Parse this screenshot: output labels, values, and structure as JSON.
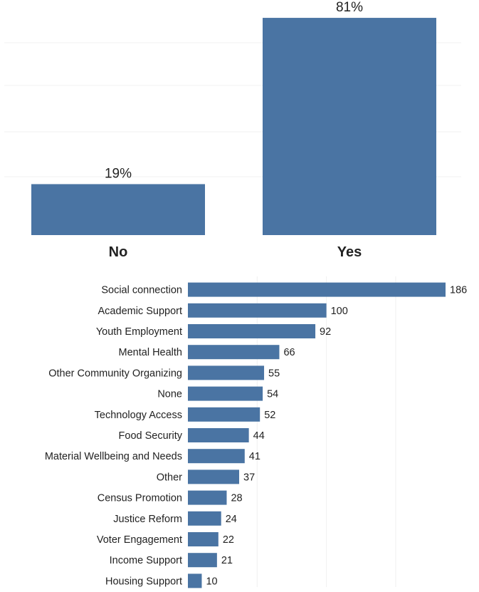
{
  "colors": {
    "bar": "#4a74a3",
    "grid": "#f0f0f0",
    "text": "#222222"
  },
  "chart_data": [
    {
      "type": "bar",
      "orientation": "vertical",
      "categories": [
        "No",
        "Yes"
      ],
      "values": [
        19,
        81
      ],
      "value_labels": [
        "19%",
        "81%"
      ],
      "ylim": [
        0,
        85
      ],
      "grid": true
    },
    {
      "type": "bar",
      "orientation": "horizontal",
      "categories": [
        "Social connection",
        "Academic Support",
        "Youth Employment",
        "Mental Health",
        "Other Community Organizing",
        "None",
        "Technology Access",
        "Food Security",
        "Material Wellbeing and Needs",
        "Other",
        "Census Promotion",
        "Justice Reform",
        "Voter Engagement",
        "Income Support",
        "Housing Support"
      ],
      "values": [
        186,
        100,
        92,
        66,
        55,
        54,
        52,
        44,
        41,
        37,
        28,
        24,
        22,
        21,
        10
      ],
      "value_labels": [
        "186",
        "100",
        "92",
        "66",
        "55",
        "54",
        "52",
        "44",
        "41",
        "37",
        "28",
        "24",
        "22",
        "21",
        "10"
      ],
      "xlim": [
        0,
        190
      ],
      "grid": true
    }
  ]
}
